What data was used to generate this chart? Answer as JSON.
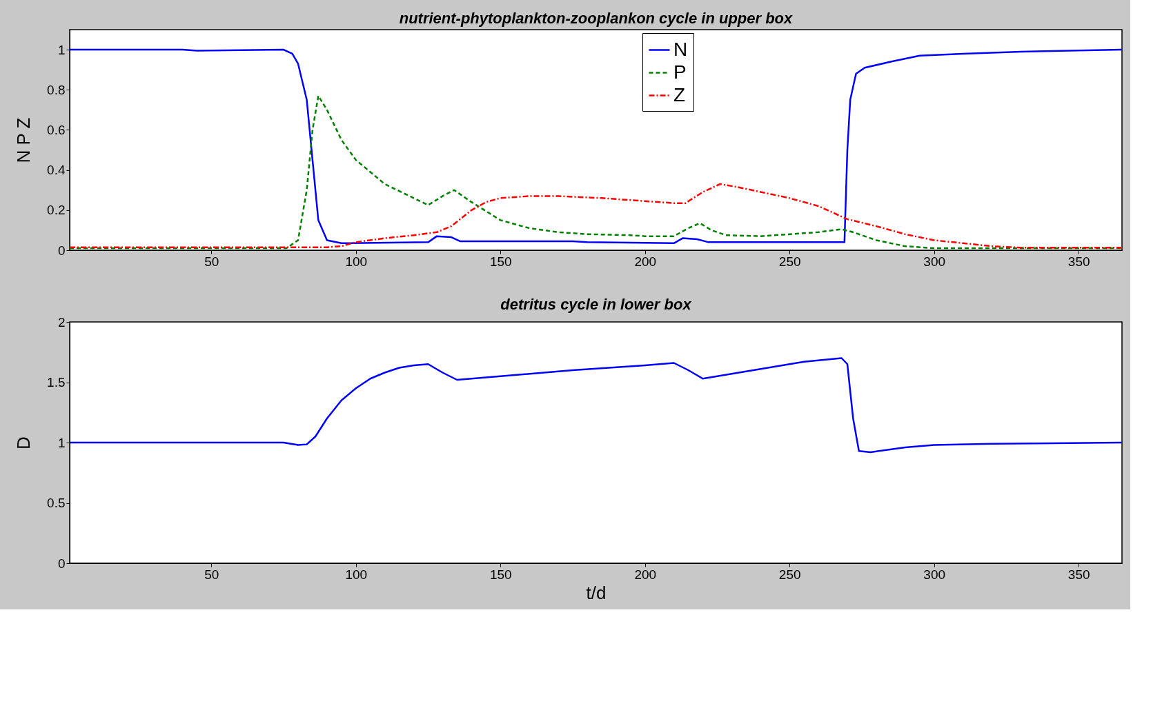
{
  "chart_data": [
    {
      "type": "line",
      "title": "nutrient-phytoplankton-zooplankon cycle in upper box",
      "ylabel": "N P Z",
      "xlim": [
        1,
        365
      ],
      "xticks": [
        50,
        100,
        150,
        200,
        250,
        300,
        350
      ],
      "ylim": [
        0,
        1.1
      ],
      "yticks": [
        0,
        0.2,
        0.4,
        0.6,
        0.8,
        1
      ],
      "legend": "top right",
      "grid": false,
      "series": [
        {
          "name": "N",
          "color": "#0000ff",
          "line_style": "solid",
          "x": [
            1,
            40,
            45,
            75,
            78,
            80,
            83,
            85,
            87,
            90,
            95,
            125,
            128,
            133,
            136,
            150,
            175,
            180,
            210,
            213,
            218,
            222,
            250,
            269,
            270,
            271,
            273,
            276,
            285,
            295,
            310,
            330,
            365
          ],
          "values": [
            1,
            1,
            0.995,
            1,
            0.98,
            0.93,
            0.75,
            0.45,
            0.15,
            0.05,
            0.035,
            0.04,
            0.07,
            0.065,
            0.045,
            0.045,
            0.045,
            0.04,
            0.035,
            0.06,
            0.055,
            0.04,
            0.04,
            0.04,
            0.5,
            0.75,
            0.88,
            0.91,
            0.94,
            0.97,
            0.98,
            0.99,
            1
          ]
        },
        {
          "name": "P",
          "color": "#008000",
          "line_style": "dashed",
          "x": [
            1,
            76,
            80,
            83,
            85,
            87,
            90,
            95,
            100,
            110,
            120,
            125,
            130,
            134,
            140,
            150,
            160,
            170,
            180,
            195,
            200,
            210,
            215,
            219,
            223,
            228,
            240,
            260,
            268,
            272,
            280,
            290,
            300,
            365
          ],
          "values": [
            0.01,
            0.01,
            0.05,
            0.3,
            0.6,
            0.77,
            0.7,
            0.55,
            0.45,
            0.33,
            0.26,
            0.225,
            0.27,
            0.3,
            0.24,
            0.15,
            0.11,
            0.09,
            0.08,
            0.075,
            0.07,
            0.07,
            0.11,
            0.135,
            0.1,
            0.075,
            0.07,
            0.09,
            0.105,
            0.09,
            0.05,
            0.02,
            0.01,
            0.01
          ]
        },
        {
          "name": "Z",
          "color": "#ff0000",
          "line_style": "dashdot",
          "x": [
            1,
            90,
            95,
            100,
            110,
            120,
            128,
            133,
            140,
            145,
            150,
            160,
            170,
            185,
            200,
            210,
            214,
            220,
            226,
            232,
            250,
            260,
            270,
            280,
            290,
            300,
            310,
            320,
            330,
            365
          ],
          "values": [
            0.015,
            0.015,
            0.02,
            0.04,
            0.06,
            0.075,
            0.09,
            0.12,
            0.2,
            0.24,
            0.26,
            0.27,
            0.27,
            0.26,
            0.245,
            0.235,
            0.235,
            0.29,
            0.33,
            0.315,
            0.26,
            0.22,
            0.155,
            0.12,
            0.08,
            0.05,
            0.035,
            0.02,
            0.013,
            0.013
          ]
        }
      ]
    },
    {
      "type": "line",
      "title": "detritus cycle in lower box",
      "xlabel": "t/d",
      "ylabel": "D",
      "xlim": [
        1,
        365
      ],
      "xticks": [
        50,
        100,
        150,
        200,
        250,
        300,
        350
      ],
      "ylim": [
        0,
        2
      ],
      "yticks": [
        0,
        0.5,
        1,
        1.5,
        2
      ],
      "grid": false,
      "series": [
        {
          "color": "#0000ff",
          "line_style": "solid",
          "x": [
            1,
            75,
            80,
            83,
            86,
            90,
            95,
            100,
            105,
            110,
            115,
            120,
            125,
            130,
            135,
            150,
            175,
            200,
            210,
            215,
            220,
            225,
            240,
            255,
            268,
            270,
            272,
            274,
            278,
            290,
            300,
            320,
            365
          ],
          "values": [
            1,
            1,
            0.98,
            0.985,
            1.05,
            1.2,
            1.35,
            1.45,
            1.53,
            1.58,
            1.62,
            1.64,
            1.65,
            1.58,
            1.52,
            1.55,
            1.6,
            1.64,
            1.66,
            1.6,
            1.53,
            1.55,
            1.61,
            1.67,
            1.7,
            1.65,
            1.2,
            0.93,
            0.92,
            0.96,
            0.98,
            0.99,
            1
          ]
        }
      ]
    }
  ]
}
